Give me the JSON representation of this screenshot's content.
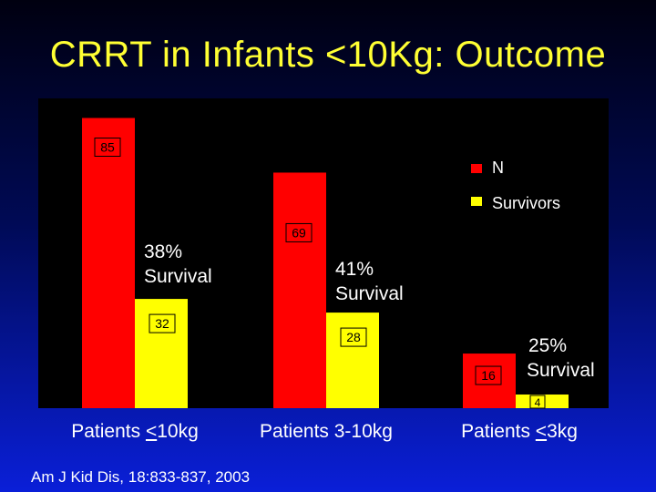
{
  "title": "CRRT in Infants <10Kg: Outcome",
  "citation": "Am J Kid Dis, 18:833-837, 2003",
  "categories": [
    {
      "prefix": "Patients ",
      "underlined": "<",
      "suffix": "10kg"
    },
    {
      "prefix": "Patients 3-10kg",
      "underlined": "",
      "suffix": ""
    },
    {
      "prefix": "Patients ",
      "underlined": "<",
      "suffix": "3kg"
    }
  ],
  "chart_data": {
    "type": "bar",
    "title": "CRRT in Infants <10Kg: Outcome",
    "categories": [
      "Patients <10kg",
      "Patients 3-10kg",
      "Patients <3kg"
    ],
    "series": [
      {
        "name": "N",
        "values": [
          85,
          69,
          16
        ]
      },
      {
        "name": "Survivors",
        "values": [
          32,
          28,
          4
        ]
      }
    ],
    "annotations": [
      {
        "line1": "38%",
        "line2": "Survival"
      },
      {
        "line1": "41%",
        "line2": "Survival"
      },
      {
        "line1": "25%",
        "line2": "Survival"
      }
    ],
    "ylim": [
      0,
      87
    ],
    "legend": "top-right",
    "colors": {
      "N": "#ff0000",
      "Survivors": "#ffff00"
    },
    "xlabel": "",
    "ylabel": ""
  }
}
